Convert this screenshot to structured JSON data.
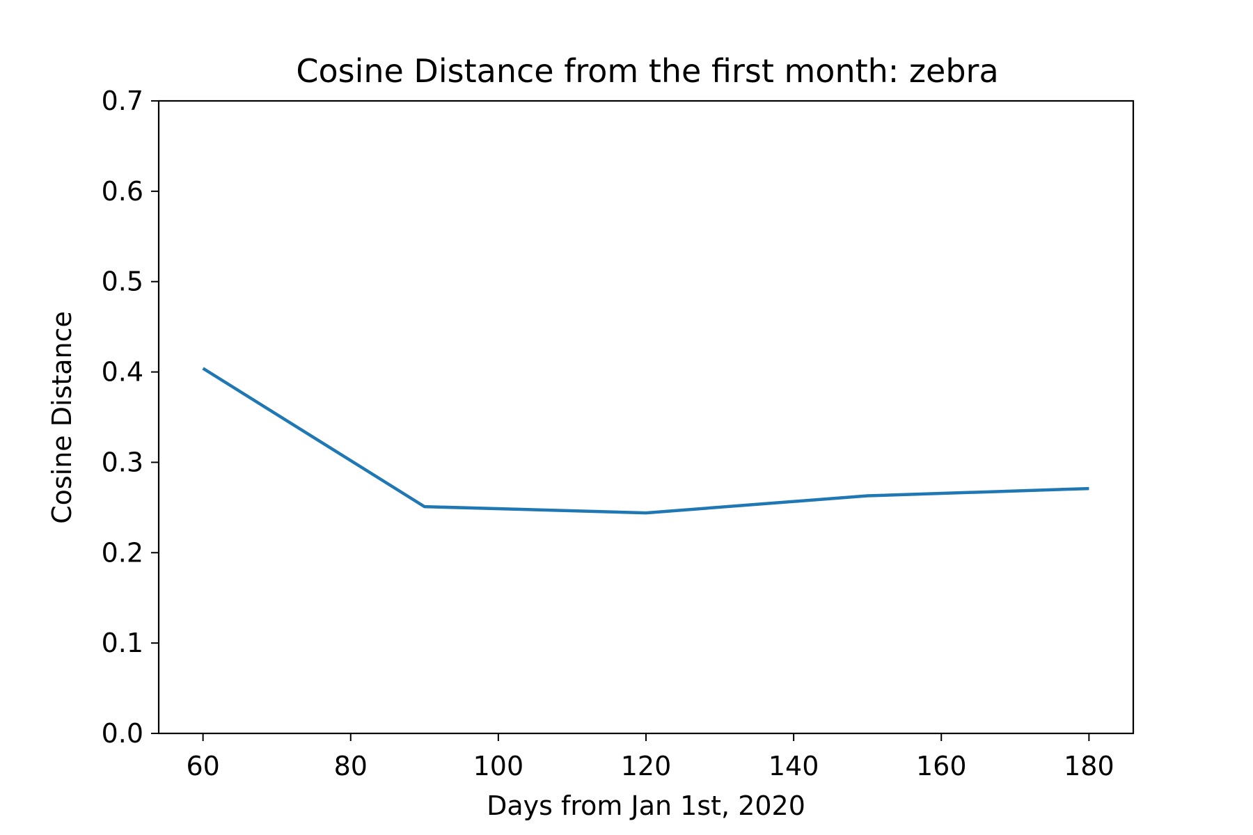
{
  "chart_data": {
    "type": "line",
    "title": "Cosine Distance from the first month: zebra",
    "xlabel": "Days from Jan 1st, 2020",
    "ylabel": "Cosine Distance",
    "xlim": [
      54,
      186
    ],
    "ylim": [
      0.0,
      0.7
    ],
    "xticks": [
      60,
      80,
      100,
      120,
      140,
      160,
      180
    ],
    "xtick_labels": [
      "60",
      "80",
      "100",
      "120",
      "140",
      "160",
      "180"
    ],
    "yticks": [
      0.0,
      0.1,
      0.2,
      0.3,
      0.4,
      0.5,
      0.6,
      0.7
    ],
    "ytick_labels": [
      "0.0",
      "0.1",
      "0.2",
      "0.3",
      "0.4",
      "0.5",
      "0.6",
      "0.7"
    ],
    "grid": false,
    "legend": "none",
    "series": [
      {
        "color": "#1f77b4",
        "x": [
          60,
          90,
          120,
          150,
          180
        ],
        "y": [
          0.404,
          0.251,
          0.244,
          0.263,
          0.271
        ]
      }
    ]
  }
}
